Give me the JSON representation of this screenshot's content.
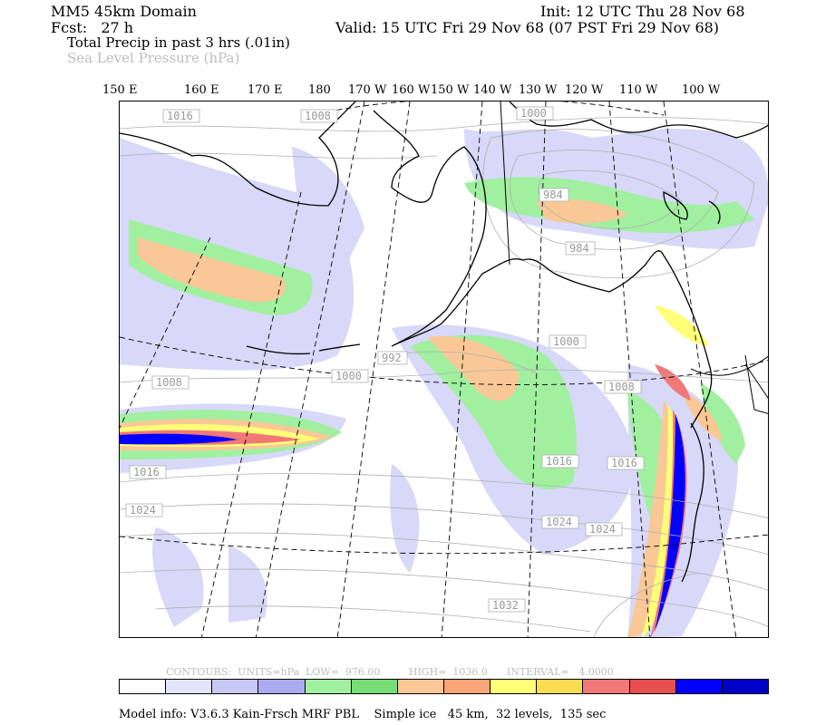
{
  "header": {
    "model": "MM5 45km Domain",
    "init": "Init: 12 UTC Thu 28 Nov 68",
    "fcst": "Fcst:   27 h",
    "valid": "Valid: 15 UTC Fri 29 Nov 68 (07 PST Fri 29 Nov 68)",
    "field1": "Total Precip in past 3 hrs (.01in)",
    "field2": "Sea Level Pressure (hPa)"
  },
  "longitudes": [
    "150 E",
    "160 E",
    "170 E",
    "180",
    "170 W",
    "160 W",
    "150 W",
    "140 W",
    "130 W",
    "120 W",
    "110 W",
    "100 W"
  ],
  "pressure_labels": [
    "1016",
    "1008",
    "1000",
    "984",
    "984",
    "1000",
    "1008",
    "992",
    "1000",
    "1008",
    "1016",
    "1016",
    "1024",
    "1024",
    "1024",
    "1032",
    "1016"
  ],
  "colors": {
    "precip_scale": [
      "#ffffff",
      "#e3e3fb",
      "#c8c8f5",
      "#ababf0",
      "#a0f0a0",
      "#78dc78",
      "#fac896",
      "#faa578",
      "#ffff78",
      "#fadc50",
      "#f07878",
      "#e65050",
      "#0000ff",
      "#0000c8"
    ]
  },
  "legend": {
    "contours_label": "CONTOURS:  UNITS=hPa  LOW=  976.00         HIGH=  1036.0      INTERVAL=   4.0000"
  },
  "footer": "Model info: V3.6.3 Kain-Frsch MRF PBL    Simple ice   45 km,  32 levels,  135 sec"
}
